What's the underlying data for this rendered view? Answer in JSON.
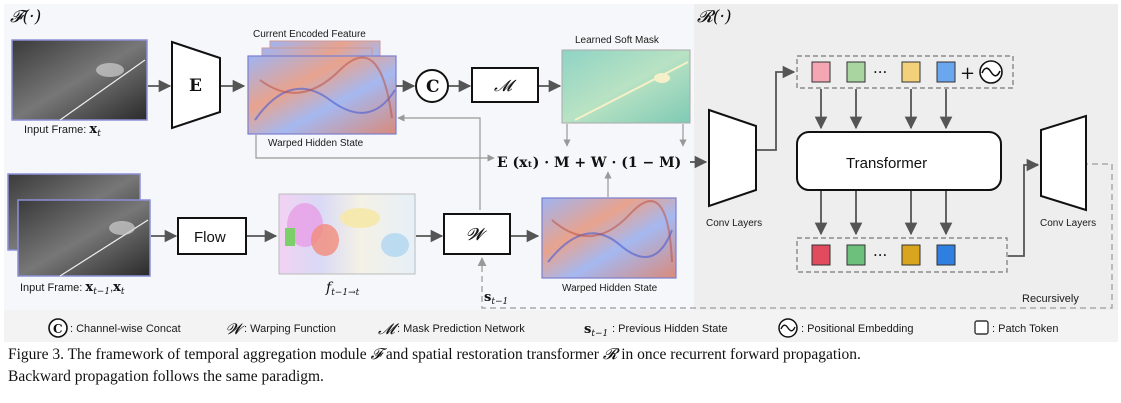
{
  "panels": {
    "left_title": "𝓕(·)",
    "right_title": "𝓡(·)",
    "recursively": "Recursively"
  },
  "labels": {
    "current_encoded_feature": "Current Encoded Feature",
    "learned_soft_mask": "Learned Soft Mask",
    "warped_hidden_state_top": "Warped Hidden State",
    "warped_hidden_state_bottom": "Warped Hidden State",
    "input_frame_top": "Input Frame: ",
    "input_frame_top_math": "x",
    "input_frame_top_sub": "t",
    "input_frame_bottom": "Input Frame: ",
    "input_frame_bottom_math": "x",
    "input_frame_bottom_sub1": "t−1",
    "input_frame_bottom_sep": ",",
    "input_frame_bottom_sub2": "t",
    "flow_field": "f",
    "flow_field_sub": "t−1→t",
    "hidden_state": "s",
    "hidden_state_sub": "t−1",
    "conv_layers_left": "Conv Layers",
    "conv_layers_right": "Conv Layers",
    "formula": "E (xₜ) · M + W · (1 − M)"
  },
  "blocks": {
    "encoder": "E",
    "mask_net": "𝓜",
    "concat": "C",
    "flow": "Flow",
    "warp": "𝓦",
    "transformer": "Transformer",
    "pos_plus": "+"
  },
  "tokens": {
    "top_colors": [
      "#f4a6b2",
      "#a8d5a0",
      "#f3d07a",
      "#6aa7ee"
    ],
    "bottom_colors": [
      "#e24b5e",
      "#6cc07c",
      "#d9a51f",
      "#2f7fe0"
    ],
    "ellipsis": "···"
  },
  "legend": [
    {
      "symbol": "C",
      "text": ": Channel-wise Concat"
    },
    {
      "symbol": "𝓦",
      "text": ": Warping Function"
    },
    {
      "symbol": "𝓜",
      "text": ": Mask Prediction Network"
    },
    {
      "symbol": "s",
      "sub": "t−1",
      "text": ": Previous Hidden State"
    },
    {
      "symbol": "~",
      "text": ": Positional Embedding"
    },
    {
      "symbol": "",
      "text": ": Patch Token"
    }
  ],
  "caption": {
    "line1_a": "Figure 3. The framework of temporal aggregation module ",
    "line1_f": "𝓕",
    "line1_b": " and spatial restoration transformer ",
    "line1_r": "𝓡",
    "line1_c": " in once recurrent forward propagation.",
    "line2": "Backward propagation follows the same paradigm."
  },
  "colors": {
    "left_panel_bg": "#f6f7fa",
    "right_panel_bg": "#eeeeee",
    "frame_border": "#7b7fcf",
    "arrow": "#555555"
  }
}
